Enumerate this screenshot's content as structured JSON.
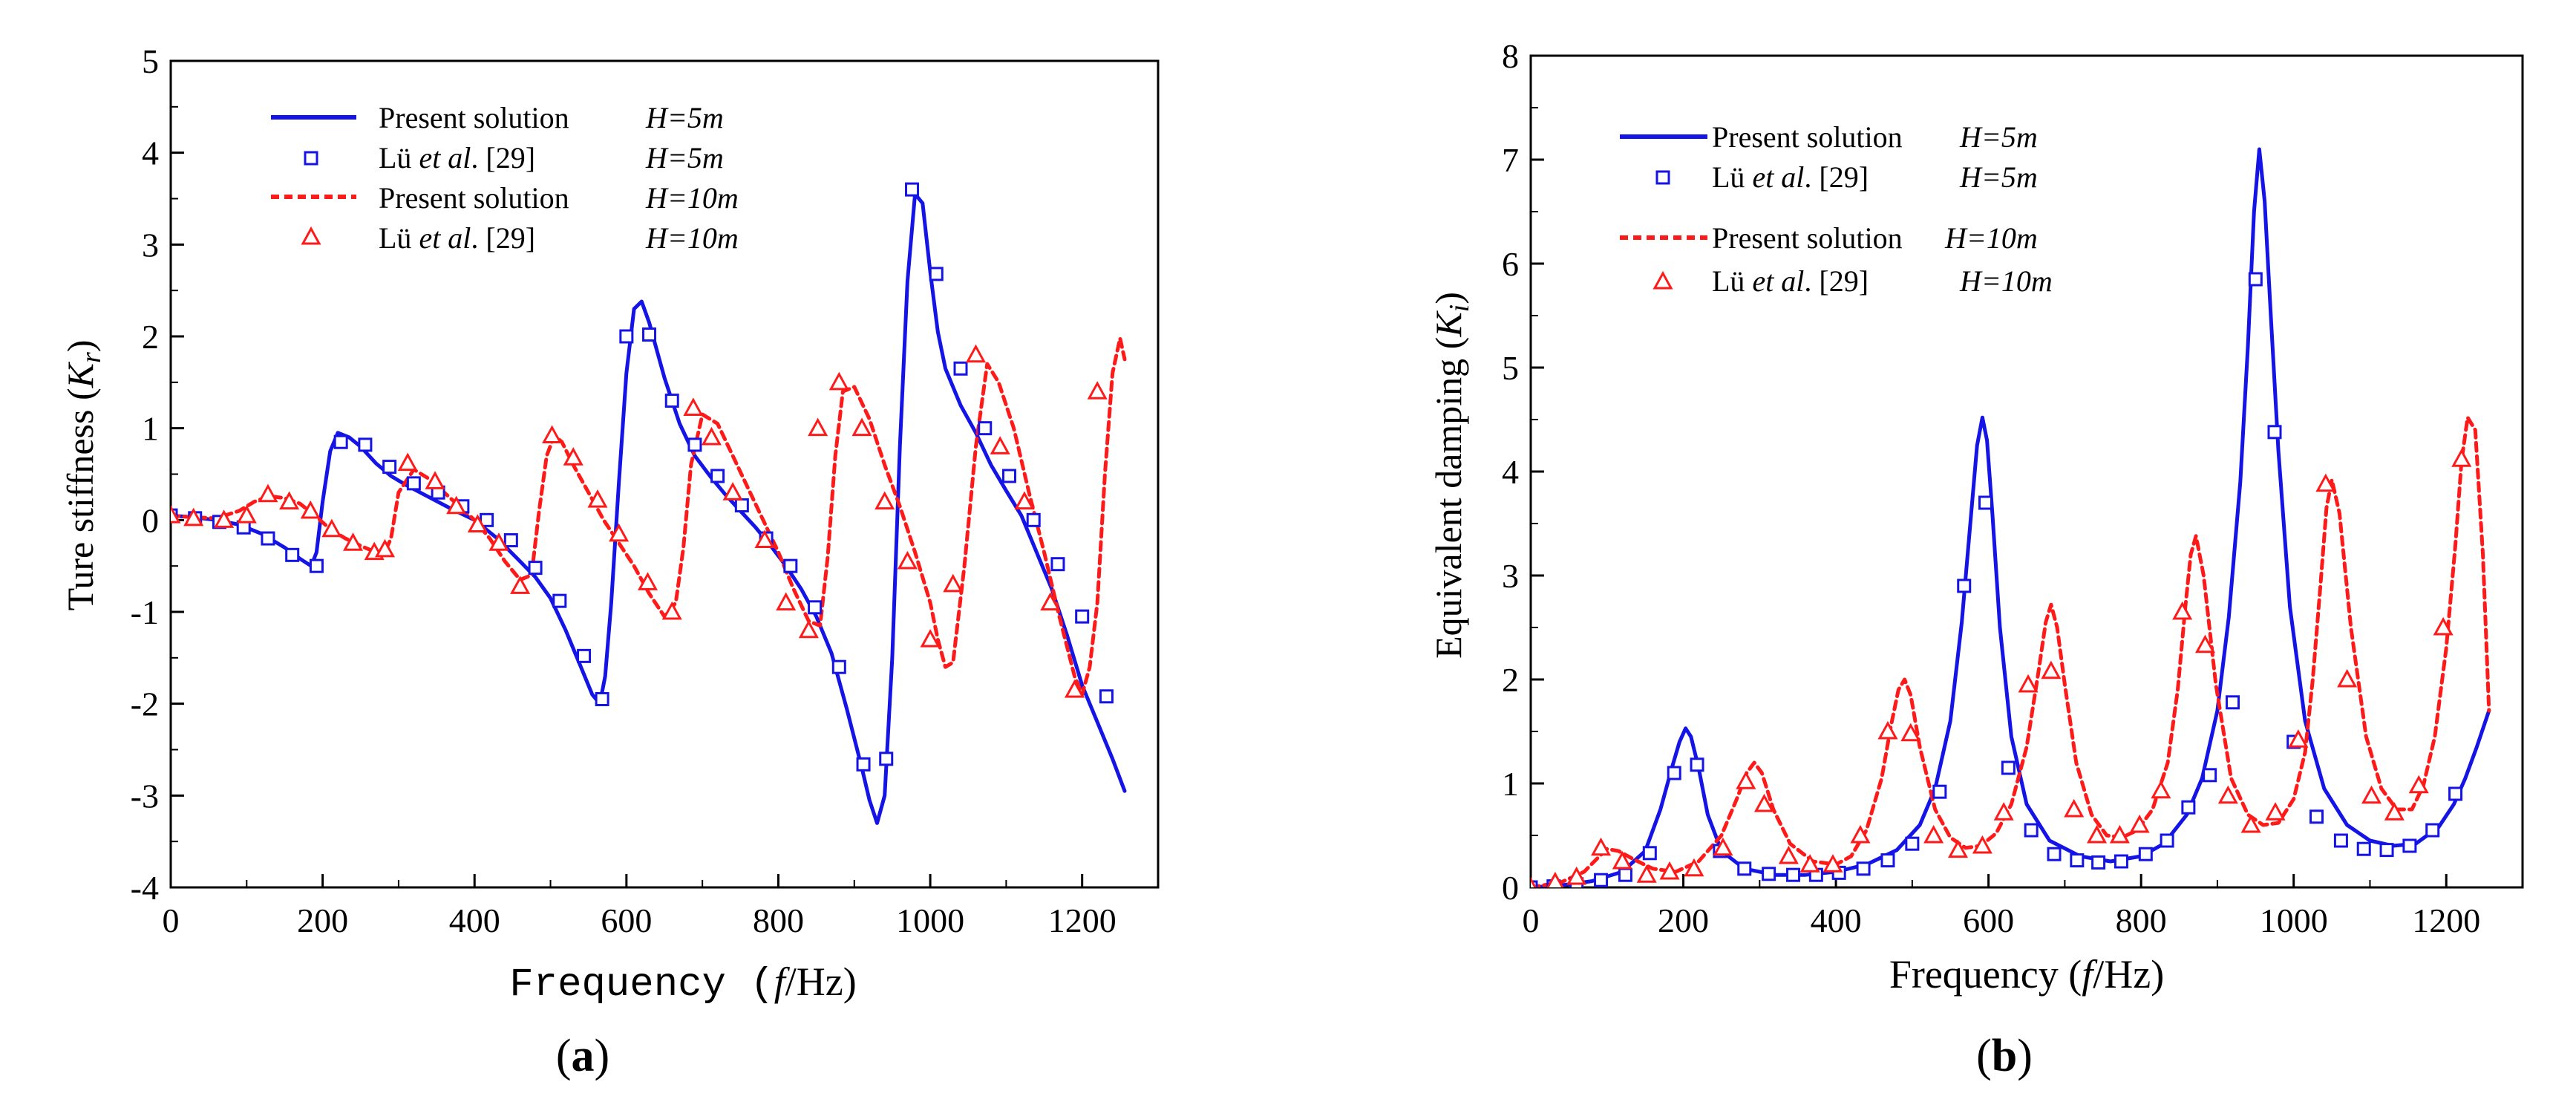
{
  "chart_data": [
    {
      "panel_label": "(a)",
      "panel_letter": "a",
      "type": "line",
      "title": "",
      "xlabel": "Frequency",
      "xlabel_unit": "(f/Hz)",
      "xlabel_parts": [
        "Frequency  (",
        "f",
        "/Hz)"
      ],
      "ylabel": "Ture stiffness (Kr)",
      "ylabel_parts": [
        "Ture stiffness  (",
        "K",
        "r",
        ")"
      ],
      "xlim": [
        0,
        1300
      ],
      "ylim": [
        -4,
        5
      ],
      "xticks": [
        0,
        200,
        400,
        600,
        800,
        1000,
        1200
      ],
      "yticks": [
        -4,
        -3,
        -2,
        -1,
        0,
        1,
        2,
        3,
        4,
        5
      ],
      "legend_position": "top-left",
      "series": [
        {
          "name": "Present solution H=5m",
          "label": "Present solution",
          "param": "H=5m",
          "style": "solid-line",
          "color": "#1414e6",
          "x": [
            0,
            30,
            60,
            90,
            120,
            150,
            170,
            185,
            192,
            200,
            210,
            220,
            235,
            250,
            270,
            290,
            310,
            340,
            370,
            400,
            430,
            460,
            480,
            500,
            520,
            540,
            555,
            565,
            572,
            580,
            590,
            600,
            610,
            620,
            630,
            650,
            670,
            690,
            710,
            730,
            750,
            770,
            790,
            810,
            830,
            850,
            870,
            890,
            910,
            920,
            930,
            940,
            950,
            960,
            970,
            980,
            990,
            1000,
            1010,
            1020,
            1040,
            1060,
            1080,
            1100,
            1120,
            1140,
            1160,
            1180,
            1200,
            1220,
            1240,
            1256
          ],
          "y": [
            0.05,
            0.03,
            0.0,
            -0.05,
            -0.15,
            -0.3,
            -0.42,
            -0.5,
            -0.35,
            0.2,
            0.75,
            0.95,
            0.9,
            0.8,
            0.62,
            0.48,
            0.38,
            0.25,
            0.12,
            0.0,
            -0.2,
            -0.45,
            -0.62,
            -0.85,
            -1.2,
            -1.6,
            -1.9,
            -2.0,
            -1.7,
            -0.9,
            0.4,
            1.6,
            2.3,
            2.38,
            2.15,
            1.55,
            1.05,
            0.7,
            0.48,
            0.28,
            0.1,
            -0.08,
            -0.28,
            -0.5,
            -0.75,
            -1.05,
            -1.45,
            -2.05,
            -2.7,
            -3.05,
            -3.3,
            -3.0,
            -1.5,
            0.8,
            2.6,
            3.55,
            3.45,
            2.7,
            2.05,
            1.65,
            1.25,
            0.95,
            0.6,
            0.32,
            0.05,
            -0.35,
            -0.75,
            -1.25,
            -1.8,
            -2.2,
            -2.6,
            -2.95
          ]
        },
        {
          "name": "Lu et al. [29] H=5m",
          "label_parts": [
            "Lü ",
            "et al",
            ". [29]"
          ],
          "param": "H=5m",
          "style": "open-square",
          "color": "#1414e6",
          "x": [
            0,
            32,
            64,
            96,
            128,
            160,
            192,
            224,
            256,
            288,
            320,
            352,
            384,
            416,
            448,
            480,
            512,
            544,
            568,
            600,
            630,
            660,
            690,
            720,
            752,
            784,
            816,
            848,
            880,
            912,
            942,
            976,
            1008,
            1040,
            1072,
            1104,
            1136,
            1168,
            1200,
            1232
          ],
          "y": [
            0.05,
            0.02,
            -0.02,
            -0.08,
            -0.2,
            -0.38,
            -0.5,
            0.85,
            0.82,
            0.58,
            0.4,
            0.3,
            0.15,
            0.0,
            -0.22,
            -0.52,
            -0.88,
            -1.48,
            -1.95,
            2.0,
            2.02,
            1.3,
            0.82,
            0.48,
            0.16,
            -0.2,
            -0.5,
            -0.95,
            -1.6,
            -2.66,
            -2.6,
            3.6,
            2.68,
            1.65,
            1.0,
            0.48,
            0.0,
            -0.48,
            -1.05,
            -1.92
          ]
        },
        {
          "name": "Present solution H=10m",
          "label": "Present solution",
          "param": "H=10m",
          "style": "dashed-line",
          "color": "#ff1a1a",
          "x": [
            0,
            30,
            60,
            90,
            110,
            130,
            150,
            170,
            190,
            210,
            230,
            250,
            270,
            280,
            290,
            300,
            320,
            340,
            360,
            380,
            400,
            420,
            440,
            460,
            475,
            485,
            495,
            505,
            515,
            530,
            550,
            570,
            590,
            610,
            630,
            650,
            665,
            675,
            685,
            700,
            720,
            740,
            760,
            780,
            800,
            820,
            840,
            855,
            865,
            875,
            885,
            900,
            920,
            940,
            960,
            980,
            1000,
            1010,
            1020,
            1030,
            1045,
            1060,
            1075,
            1090,
            1110,
            1130,
            1150,
            1170,
            1190,
            1200,
            1210,
            1220,
            1230,
            1240,
            1250,
            1256
          ],
          "y": [
            0.05,
            0.03,
            0.02,
            0.1,
            0.2,
            0.26,
            0.24,
            0.18,
            0.05,
            -0.1,
            -0.2,
            -0.28,
            -0.35,
            -0.38,
            -0.2,
            0.3,
            0.55,
            0.45,
            0.3,
            0.15,
            0.0,
            -0.2,
            -0.45,
            -0.65,
            -0.6,
            0.1,
            0.7,
            0.92,
            0.85,
            0.6,
            0.3,
            0.0,
            -0.25,
            -0.5,
            -0.8,
            -1.05,
            -0.9,
            -0.3,
            0.6,
            1.15,
            1.05,
            0.7,
            0.35,
            0.0,
            -0.35,
            -0.75,
            -1.1,
            -1.15,
            -0.4,
            0.7,
            1.4,
            1.45,
            1.1,
            0.6,
            0.15,
            -0.35,
            -0.9,
            -1.3,
            -1.6,
            -1.55,
            -0.5,
            0.8,
            1.7,
            1.5,
            1.0,
            0.3,
            -0.35,
            -1.05,
            -1.7,
            -1.9,
            -1.6,
            -0.9,
            0.5,
            1.6,
            1.98,
            1.75
          ]
        },
        {
          "name": "Lu et al. [29] H=10m",
          "label_parts": [
            "Lü ",
            "et al",
            ". [29]"
          ],
          "param": "H=10m",
          "style": "open-triangle",
          "color": "#ff1a1a",
          "x": [
            0,
            30,
            70,
            100,
            128,
            156,
            184,
            212,
            240,
            268,
            282,
            312,
            348,
            376,
            404,
            432,
            460,
            502,
            530,
            562,
            590,
            628,
            660,
            688,
            712,
            740,
            782,
            810,
            840,
            852,
            880,
            910,
            940,
            970,
            1000,
            1030,
            1060,
            1092,
            1124,
            1158,
            1190,
            1220
          ],
          "y": [
            0.05,
            0.02,
            0.0,
            0.05,
            0.28,
            0.2,
            0.1,
            -0.1,
            -0.25,
            -0.35,
            -0.32,
            0.62,
            0.42,
            0.15,
            -0.05,
            -0.25,
            -0.72,
            0.92,
            0.68,
            0.22,
            -0.15,
            -0.68,
            -1.0,
            1.22,
            0.9,
            0.3,
            -0.22,
            -0.9,
            -1.2,
            1.0,
            1.5,
            1.0,
            0.2,
            -0.45,
            -1.3,
            -0.7,
            1.8,
            0.8,
            0.2,
            -0.9,
            -1.85,
            1.4
          ]
        }
      ]
    },
    {
      "panel_label": "(b)",
      "panel_letter": "b",
      "type": "line",
      "title": "",
      "xlabel": "Frequency",
      "xlabel_unit": "(f/Hz)",
      "xlabel_parts": [
        "Frequency (",
        "f",
        "/Hz)"
      ],
      "ylabel": "Equivalent damping (Ki)",
      "ylabel_parts": [
        "Equivalent damping (",
        "K",
        "i",
        ")"
      ],
      "xlim": [
        0,
        1300
      ],
      "ylim": [
        0,
        8
      ],
      "xticks": [
        0,
        200,
        400,
        600,
        800,
        1000,
        1200
      ],
      "yticks": [
        0,
        1,
        2,
        3,
        4,
        5,
        6,
        7,
        8
      ],
      "legend_position": "top-left",
      "series": [
        {
          "name": "Present solution H=5m",
          "label": "Present solution",
          "param": "H=5m",
          "style": "solid-line",
          "color": "#1414e6",
          "x": [
            0,
            40,
            80,
            120,
            150,
            170,
            185,
            195,
            203,
            210,
            220,
            232,
            250,
            280,
            320,
            360,
            400,
            440,
            480,
            510,
            530,
            550,
            565,
            575,
            585,
            592,
            598,
            605,
            615,
            630,
            650,
            680,
            720,
            760,
            800,
            830,
            860,
            880,
            900,
            915,
            930,
            940,
            948,
            955,
            962,
            970,
            980,
            995,
            1015,
            1040,
            1070,
            1100,
            1130,
            1160,
            1190,
            1210,
            1225,
            1240,
            1256
          ],
          "y": [
            0.0,
            0.02,
            0.06,
            0.15,
            0.35,
            0.75,
            1.15,
            1.4,
            1.53,
            1.45,
            1.15,
            0.7,
            0.35,
            0.18,
            0.12,
            0.12,
            0.15,
            0.22,
            0.36,
            0.6,
            0.95,
            1.6,
            2.55,
            3.4,
            4.25,
            4.52,
            4.3,
            3.6,
            2.5,
            1.45,
            0.8,
            0.45,
            0.3,
            0.25,
            0.3,
            0.42,
            0.7,
            1.05,
            1.7,
            2.6,
            3.9,
            5.2,
            6.5,
            7.1,
            6.6,
            5.5,
            4.2,
            2.7,
            1.6,
            0.95,
            0.6,
            0.45,
            0.4,
            0.42,
            0.58,
            0.8,
            1.05,
            1.35,
            1.7
          ]
        },
        {
          "name": "Lu et al. [29] H=5m",
          "label_parts": [
            "Lü ",
            "et al",
            ". [29]"
          ],
          "param": "H=5m",
          "style": "open-square",
          "color": "#1414e6",
          "x": [
            0,
            30,
            60,
            92,
            124,
            156,
            188,
            218,
            248,
            280,
            312,
            344,
            374,
            404,
            436,
            468,
            500,
            536,
            568,
            596,
            626,
            656,
            686,
            716,
            744,
            774,
            806,
            834,
            862,
            890,
            920,
            950,
            975,
            1000,
            1030,
            1062,
            1092,
            1122,
            1152,
            1182,
            1212
          ],
          "y": [
            0.0,
            0.01,
            0.03,
            0.07,
            0.12,
            0.33,
            1.1,
            1.18,
            0.35,
            0.18,
            0.13,
            0.12,
            0.12,
            0.14,
            0.18,
            0.26,
            0.42,
            0.92,
            2.9,
            3.7,
            1.15,
            0.55,
            0.32,
            0.26,
            0.24,
            0.25,
            0.32,
            0.45,
            0.77,
            1.08,
            1.78,
            5.85,
            4.38,
            1.4,
            0.68,
            0.45,
            0.37,
            0.36,
            0.4,
            0.55,
            0.9
          ]
        },
        {
          "name": "Present solution H=10m",
          "label": "Present solution",
          "param": "H=10m",
          "style": "dashed-line",
          "color": "#ff1a1a",
          "x": [
            0,
            40,
            70,
            90,
            100,
            115,
            135,
            160,
            190,
            220,
            250,
            270,
            283,
            293,
            303,
            318,
            340,
            370,
            400,
            420,
            440,
            460,
            472,
            482,
            490,
            498,
            510,
            530,
            550,
            570,
            590,
            610,
            630,
            650,
            665,
            675,
            682,
            690,
            700,
            715,
            735,
            755,
            775,
            795,
            815,
            835,
            848,
            858,
            865,
            872,
            882,
            898,
            918,
            940,
            960,
            980,
            1000,
            1015,
            1025,
            1035,
            1043,
            1050,
            1060,
            1075,
            1095,
            1115,
            1135,
            1155,
            1170,
            1185,
            1200,
            1212,
            1220,
            1228,
            1238,
            1248,
            1256
          ],
          "y": [
            0.0,
            0.05,
            0.15,
            0.3,
            0.37,
            0.35,
            0.27,
            0.18,
            0.15,
            0.25,
            0.5,
            0.85,
            1.1,
            1.2,
            1.1,
            0.75,
            0.42,
            0.25,
            0.22,
            0.3,
            0.55,
            1.05,
            1.55,
            1.9,
            2.0,
            1.85,
            1.35,
            0.75,
            0.48,
            0.38,
            0.4,
            0.52,
            0.8,
            1.35,
            2.05,
            2.55,
            2.72,
            2.5,
            1.95,
            1.2,
            0.7,
            0.5,
            0.48,
            0.55,
            0.75,
            1.2,
            1.9,
            2.7,
            3.2,
            3.38,
            3.0,
            1.95,
            1.05,
            0.7,
            0.6,
            0.62,
            0.85,
            1.3,
            2.0,
            2.9,
            3.65,
            3.92,
            3.6,
            2.5,
            1.45,
            0.95,
            0.75,
            0.75,
            0.98,
            1.45,
            2.3,
            3.3,
            4.1,
            4.52,
            4.4,
            3.2,
            1.7
          ]
        },
        {
          "name": "Lu et al. [29] H=10m",
          "label_parts": [
            "Lü ",
            "et al",
            ". [29]"
          ],
          "param": "H=10m",
          "style": "open-triangle",
          "color": "#ff1a1a",
          "x": [
            0,
            32,
            60,
            92,
            120,
            152,
            182,
            214,
            252,
            282,
            306,
            338,
            366,
            396,
            432,
            468,
            498,
            528,
            560,
            592,
            620,
            652,
            682,
            712,
            742,
            772,
            798,
            826,
            854,
            884,
            914,
            944,
            976,
            1006,
            1042,
            1070,
            1102,
            1132,
            1164,
            1196,
            1220
          ],
          "y": [
            0.0,
            0.05,
            0.1,
            0.38,
            0.25,
            0.12,
            0.15,
            0.18,
            0.38,
            1.02,
            0.8,
            0.3,
            0.22,
            0.22,
            0.5,
            1.5,
            1.48,
            0.5,
            0.36,
            0.4,
            0.72,
            1.95,
            2.08,
            0.75,
            0.5,
            0.5,
            0.6,
            0.93,
            2.65,
            2.33,
            0.88,
            0.6,
            0.72,
            1.42,
            3.88,
            2.0,
            0.88,
            0.72,
            0.98,
            2.5,
            4.12
          ]
        }
      ]
    }
  ]
}
